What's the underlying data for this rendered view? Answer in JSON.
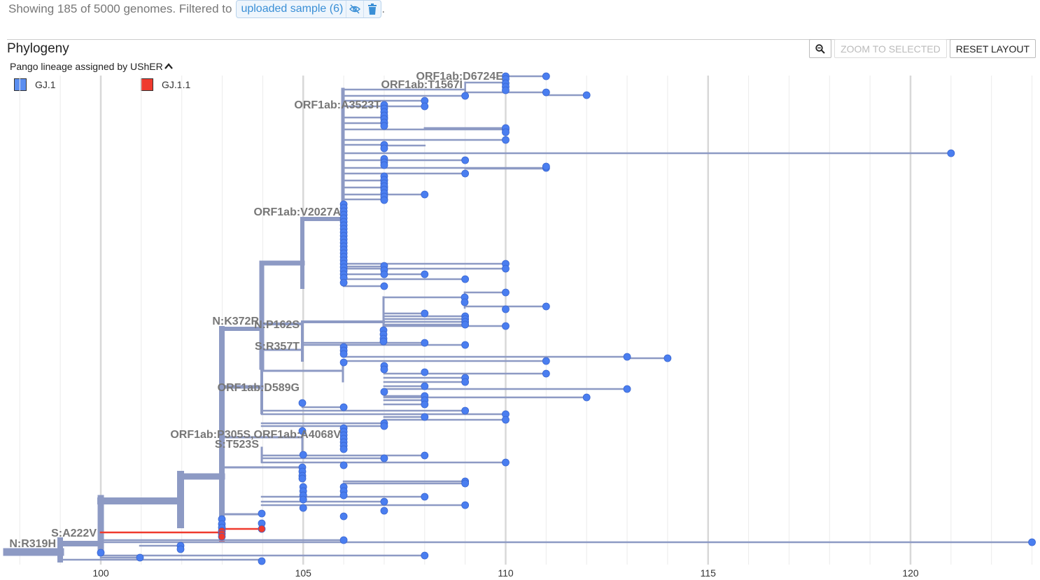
{
  "status": {
    "text": "Showing 185 of 5000 genomes. Filtered to",
    "filter_chip": "uploaded sample (6)",
    "trailing": "."
  },
  "panel": {
    "title": "Phylogeny",
    "zoom_icon": "magnifier-minus-icon",
    "zoom_selected_label": "ZOOM TO SELECTED",
    "reset_layout_label": "RESET LAYOUT"
  },
  "legend": {
    "title": "Pango lineage assigned by UShER",
    "items": [
      {
        "label": "GJ.1",
        "color": "#5b8ef0"
      },
      {
        "label": "GJ.1.1",
        "color": "#ef3a2e"
      }
    ]
  },
  "axis": {
    "ticks": [
      "100",
      "105",
      "110",
      "115",
      "120"
    ]
  },
  "mutation_labels": [
    "ORF1ab:D6724E",
    "ORF1ab:T1567I",
    "ORF1ab:A3523T",
    "ORF1ab:V2027A",
    "N:K372R",
    "N:P162S",
    "S:R357T",
    "ORF1ab:D589G",
    "ORF1ab:P305S,ORF1ab:A4068V",
    "S:T523S",
    "S:A222V",
    "N:R319H"
  ],
  "colors": {
    "branch": "#8d9ac4",
    "tip": "#4a7ef0",
    "highlight": "#ef3a2e",
    "grid": "#e4e4e4"
  }
}
